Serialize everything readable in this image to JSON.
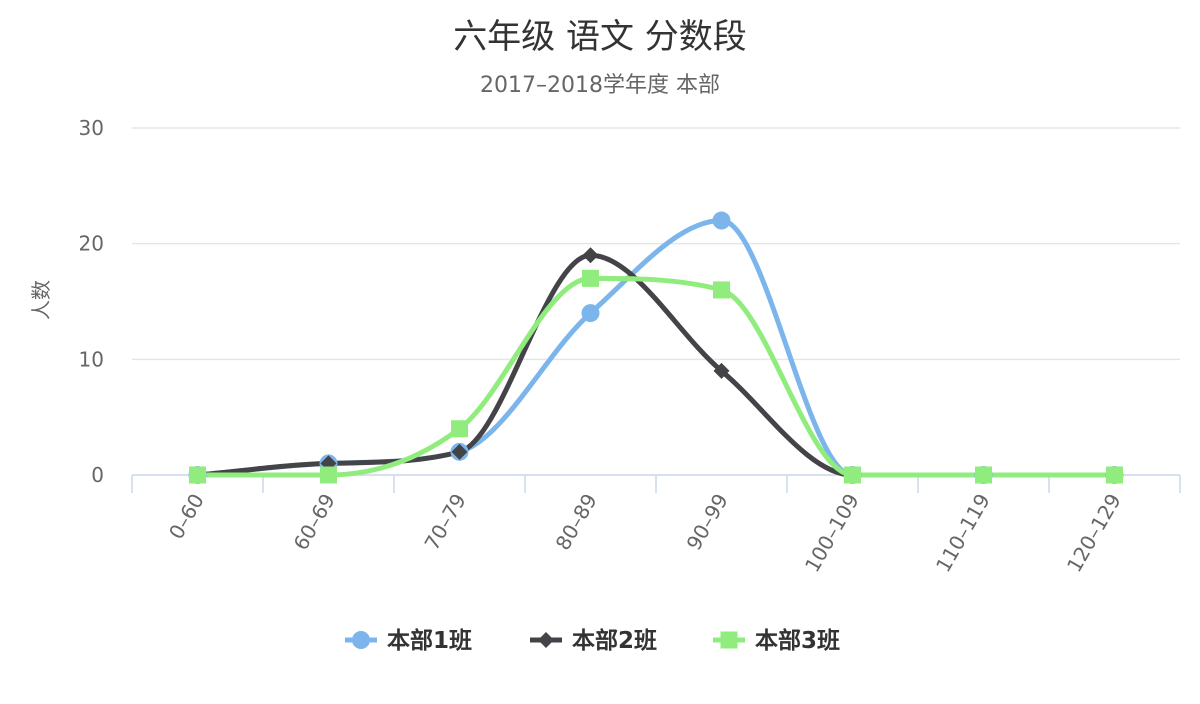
{
  "chart_data": {
    "type": "line",
    "title": "六年级 语文 分数段",
    "subtitle": "2017–2018学年度 本部",
    "xlabel": "",
    "ylabel": "人数",
    "categories": [
      "0–60",
      "60–69",
      "70–79",
      "80–89",
      "90–99",
      "100–109",
      "110–119",
      "120–129"
    ],
    "ylim": [
      0,
      30
    ],
    "yticks": [
      0,
      10,
      20,
      30
    ],
    "grid": true,
    "legend_position": "bottom",
    "smooth": true,
    "series": [
      {
        "name": "本部1班",
        "values": [
          0,
          1,
          2,
          14,
          22,
          0,
          0,
          0
        ],
        "color": "#7cb5ec",
        "marker": "circle"
      },
      {
        "name": "本部2班",
        "values": [
          0,
          1,
          2,
          19,
          9,
          0,
          0,
          0
        ],
        "color": "#434348",
        "marker": "diamond"
      },
      {
        "name": "本部3班",
        "values": [
          0,
          0,
          4,
          17,
          16,
          0,
          0,
          0
        ],
        "color": "#90ed7d",
        "marker": "square"
      }
    ]
  }
}
